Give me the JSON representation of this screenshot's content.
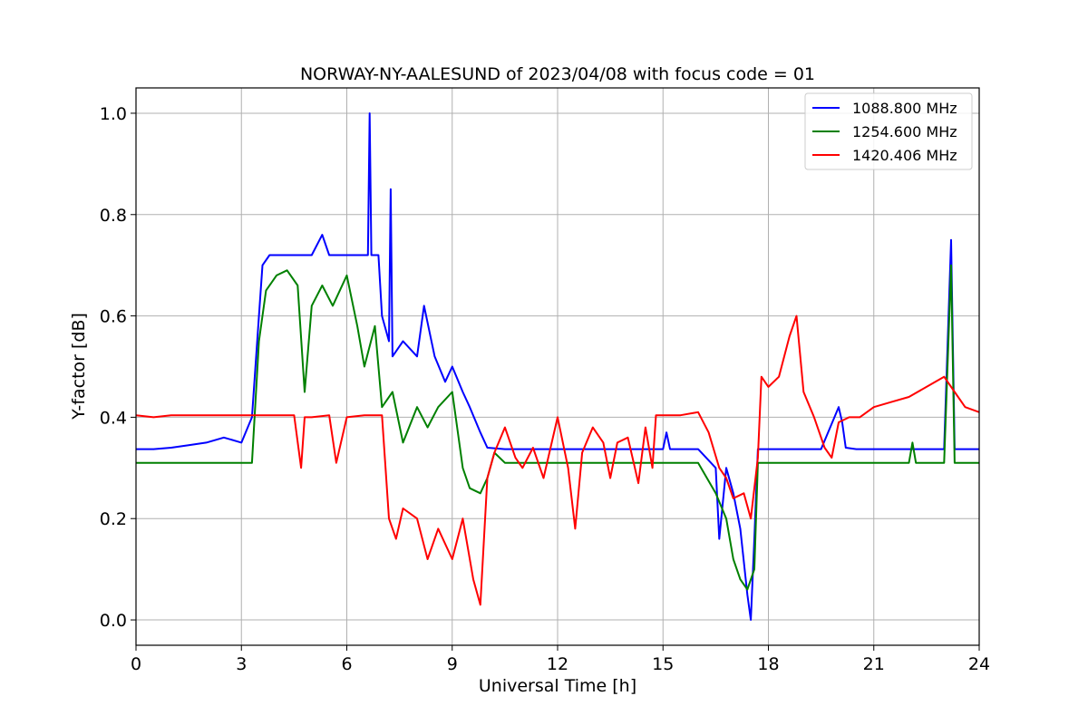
{
  "chart_data": {
    "type": "line",
    "title": "NORWAY-NY-AALESUND of 2023/04/08 with focus code = 01",
    "xlabel": "Universal Time [h]",
    "ylabel": "Y-factor [dB]",
    "xlim": [
      0,
      24
    ],
    "ylim": [
      -0.05,
      1.05
    ],
    "xticks": [
      0,
      3,
      6,
      9,
      12,
      15,
      18,
      21,
      24
    ],
    "xtick_labels": [
      "0",
      "3",
      "6",
      "9",
      "12",
      "15",
      "18",
      "21",
      "24"
    ],
    "yticks": [
      0.0,
      0.2,
      0.4,
      0.6,
      0.8,
      1.0
    ],
    "ytick_labels": [
      "0.0",
      "0.2",
      "0.4",
      "0.6",
      "0.8",
      "1.0"
    ],
    "grid": true,
    "legend_position": "top-right",
    "series": [
      {
        "name": "1088.800 MHz",
        "color": "#0000ff",
        "x": [
          0,
          0.5,
          1.0,
          1.5,
          2.0,
          2.5,
          3.0,
          3.3,
          3.5,
          3.6,
          3.8,
          4.0,
          4.5,
          5.0,
          5.3,
          5.5,
          6.0,
          6.5,
          6.6,
          6.65,
          6.7,
          6.9,
          7.0,
          7.2,
          7.25,
          7.3,
          7.6,
          8.0,
          8.2,
          8.5,
          8.8,
          9.0,
          9.3,
          9.5,
          9.8,
          10.0,
          10.5,
          11.0,
          12.0,
          13.0,
          14.0,
          15.0,
          15.1,
          15.2,
          16.0,
          16.5,
          16.6,
          16.8,
          17.0,
          17.2,
          17.4,
          17.5,
          17.6,
          17.7,
          18.0,
          18.5,
          19.0,
          19.5,
          20.0,
          20.1,
          20.2,
          20.5,
          21.0,
          22.0,
          23.0,
          23.2,
          23.3,
          23.4,
          24.0
        ],
        "y": [
          0.337,
          0.337,
          0.34,
          0.345,
          0.35,
          0.36,
          0.35,
          0.4,
          0.6,
          0.7,
          0.72,
          0.72,
          0.72,
          0.72,
          0.76,
          0.72,
          0.72,
          0.72,
          0.72,
          1.0,
          0.72,
          0.72,
          0.6,
          0.55,
          0.85,
          0.52,
          0.55,
          0.52,
          0.62,
          0.52,
          0.47,
          0.5,
          0.45,
          0.42,
          0.37,
          0.34,
          0.337,
          0.337,
          0.337,
          0.337,
          0.337,
          0.337,
          0.37,
          0.337,
          0.337,
          0.3,
          0.16,
          0.3,
          0.25,
          0.18,
          0.05,
          0.0,
          0.16,
          0.337,
          0.337,
          0.337,
          0.337,
          0.337,
          0.42,
          0.39,
          0.34,
          0.337,
          0.337,
          0.337,
          0.337,
          0.75,
          0.337,
          0.337,
          0.337
        ]
      },
      {
        "name": "1254.600 MHz",
        "color": "#008000",
        "x": [
          0,
          1.0,
          2.0,
          3.0,
          3.3,
          3.5,
          3.7,
          4.0,
          4.3,
          4.6,
          4.8,
          5.0,
          5.3,
          5.6,
          6.0,
          6.3,
          6.5,
          6.8,
          7.0,
          7.3,
          7.6,
          8.0,
          8.3,
          8.6,
          9.0,
          9.3,
          9.5,
          9.8,
          10.0,
          10.2,
          10.5,
          11.0,
          12.0,
          14.0,
          16.0,
          16.5,
          16.8,
          17.0,
          17.2,
          17.4,
          17.6,
          17.7,
          18.0,
          19.0,
          20.0,
          21.0,
          22.0,
          22.1,
          22.2,
          23.0,
          23.2,
          23.3,
          23.4,
          24.0
        ],
        "y": [
          0.31,
          0.31,
          0.31,
          0.31,
          0.31,
          0.55,
          0.65,
          0.68,
          0.69,
          0.66,
          0.45,
          0.62,
          0.66,
          0.62,
          0.68,
          0.58,
          0.5,
          0.58,
          0.42,
          0.45,
          0.35,
          0.42,
          0.38,
          0.42,
          0.45,
          0.3,
          0.26,
          0.25,
          0.28,
          0.33,
          0.31,
          0.31,
          0.31,
          0.31,
          0.31,
          0.25,
          0.2,
          0.12,
          0.08,
          0.06,
          0.1,
          0.31,
          0.31,
          0.31,
          0.31,
          0.31,
          0.31,
          0.35,
          0.31,
          0.31,
          0.7,
          0.31,
          0.31,
          0.31
        ]
      },
      {
        "name": "1420.406 MHz",
        "color": "#ff0000",
        "x": [
          0,
          0.5,
          1.0,
          2.0,
          3.0,
          3.5,
          4.0,
          4.5,
          4.7,
          4.8,
          5.0,
          5.5,
          5.7,
          6.0,
          6.5,
          7.0,
          7.2,
          7.4,
          7.6,
          8.0,
          8.3,
          8.6,
          9.0,
          9.3,
          9.6,
          9.8,
          10.0,
          10.2,
          10.5,
          10.8,
          11.0,
          11.3,
          11.6,
          12.0,
          12.3,
          12.5,
          12.7,
          13.0,
          13.3,
          13.5,
          13.7,
          14.0,
          14.3,
          14.5,
          14.7,
          14.8,
          15.0,
          15.5,
          16.0,
          16.3,
          16.6,
          16.8,
          17.0,
          17.3,
          17.5,
          17.7,
          17.8,
          18.0,
          18.3,
          18.6,
          18.8,
          19.0,
          19.3,
          19.6,
          19.8,
          20.0,
          20.3,
          20.6,
          21.0,
          21.5,
          22.0,
          22.5,
          23.0,
          23.3,
          23.6,
          24.0
        ],
        "y": [
          0.404,
          0.4,
          0.404,
          0.404,
          0.404,
          0.404,
          0.404,
          0.404,
          0.3,
          0.4,
          0.4,
          0.404,
          0.31,
          0.4,
          0.404,
          0.404,
          0.2,
          0.16,
          0.22,
          0.2,
          0.12,
          0.18,
          0.12,
          0.2,
          0.08,
          0.03,
          0.28,
          0.33,
          0.38,
          0.32,
          0.3,
          0.34,
          0.28,
          0.4,
          0.3,
          0.18,
          0.33,
          0.38,
          0.35,
          0.28,
          0.35,
          0.36,
          0.27,
          0.38,
          0.3,
          0.404,
          0.404,
          0.404,
          0.41,
          0.37,
          0.3,
          0.28,
          0.24,
          0.25,
          0.2,
          0.32,
          0.48,
          0.46,
          0.48,
          0.56,
          0.6,
          0.45,
          0.4,
          0.34,
          0.32,
          0.39,
          0.4,
          0.4,
          0.42,
          0.43,
          0.44,
          0.46,
          0.48,
          0.45,
          0.42,
          0.41
        ]
      }
    ]
  }
}
